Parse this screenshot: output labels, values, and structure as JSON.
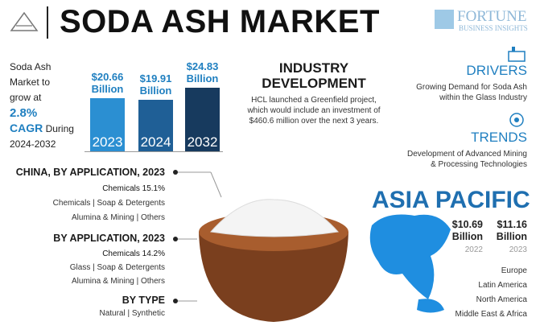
{
  "header": {
    "title": "SODA ASH MARKET",
    "brand": "FORTUNE",
    "brand_sub": "BUSINESS INSIGHTS"
  },
  "growth": {
    "line1": "Soda Ash",
    "line2": "Market to",
    "line3": "grow at",
    "cagr": "2.8%",
    "cagr_label": "CAGR",
    "during": "During",
    "period": "2024-2032"
  },
  "chart_data": {
    "type": "bar",
    "categories": [
      "2023",
      "2024",
      "2032"
    ],
    "values": [
      20.66,
      19.91,
      24.83
    ],
    "value_labels": [
      "$20.66 Billion",
      "$19.91 Billion",
      "$24.83 Billion"
    ],
    "colors": [
      "#2b8fd2",
      "#1f5f96",
      "#173a5e"
    ]
  },
  "industry": {
    "title_1": "INDUSTRY",
    "title_2": "DEVELOPMENT",
    "lines": [
      "HCL launched a Greenfield project,",
      "which would include an investment of",
      "$460.6 million over the next 3 years."
    ]
  },
  "drivers": {
    "title": "DRIVERS",
    "lines": [
      "Growing Demand for Soda Ash",
      "within the Glass Industry"
    ]
  },
  "trends": {
    "title": "TRENDS",
    "lines": [
      "Development of Advanced Mining",
      "& Processing Technologies"
    ]
  },
  "segments": [
    {
      "title": "CHINA, BY APPLICATION, 2023",
      "lines": [
        "Chemicals 15.1%",
        "Chemicals  |  Soap & Detergents",
        "Alumina & Mining  |  Others"
      ]
    },
    {
      "title": "BY APPLICATION, 2023",
      "lines": [
        "Chemicals 14.2%",
        "Glass  |  Soap & Detergents",
        "Alumina & Mining  |  Others"
      ]
    },
    {
      "title": "BY TYPE",
      "lines": [
        "Natural  |  Synthetic"
      ]
    }
  ],
  "region": {
    "title": "ASIA PACIFIC",
    "values": [
      {
        "amount": "$10.69 Billion",
        "year": "2022"
      },
      {
        "amount": "$11.16 Billion",
        "year": "2023"
      }
    ],
    "regions": [
      "Europe",
      "Latin America",
      "North America",
      "Middle East & Africa"
    ]
  }
}
